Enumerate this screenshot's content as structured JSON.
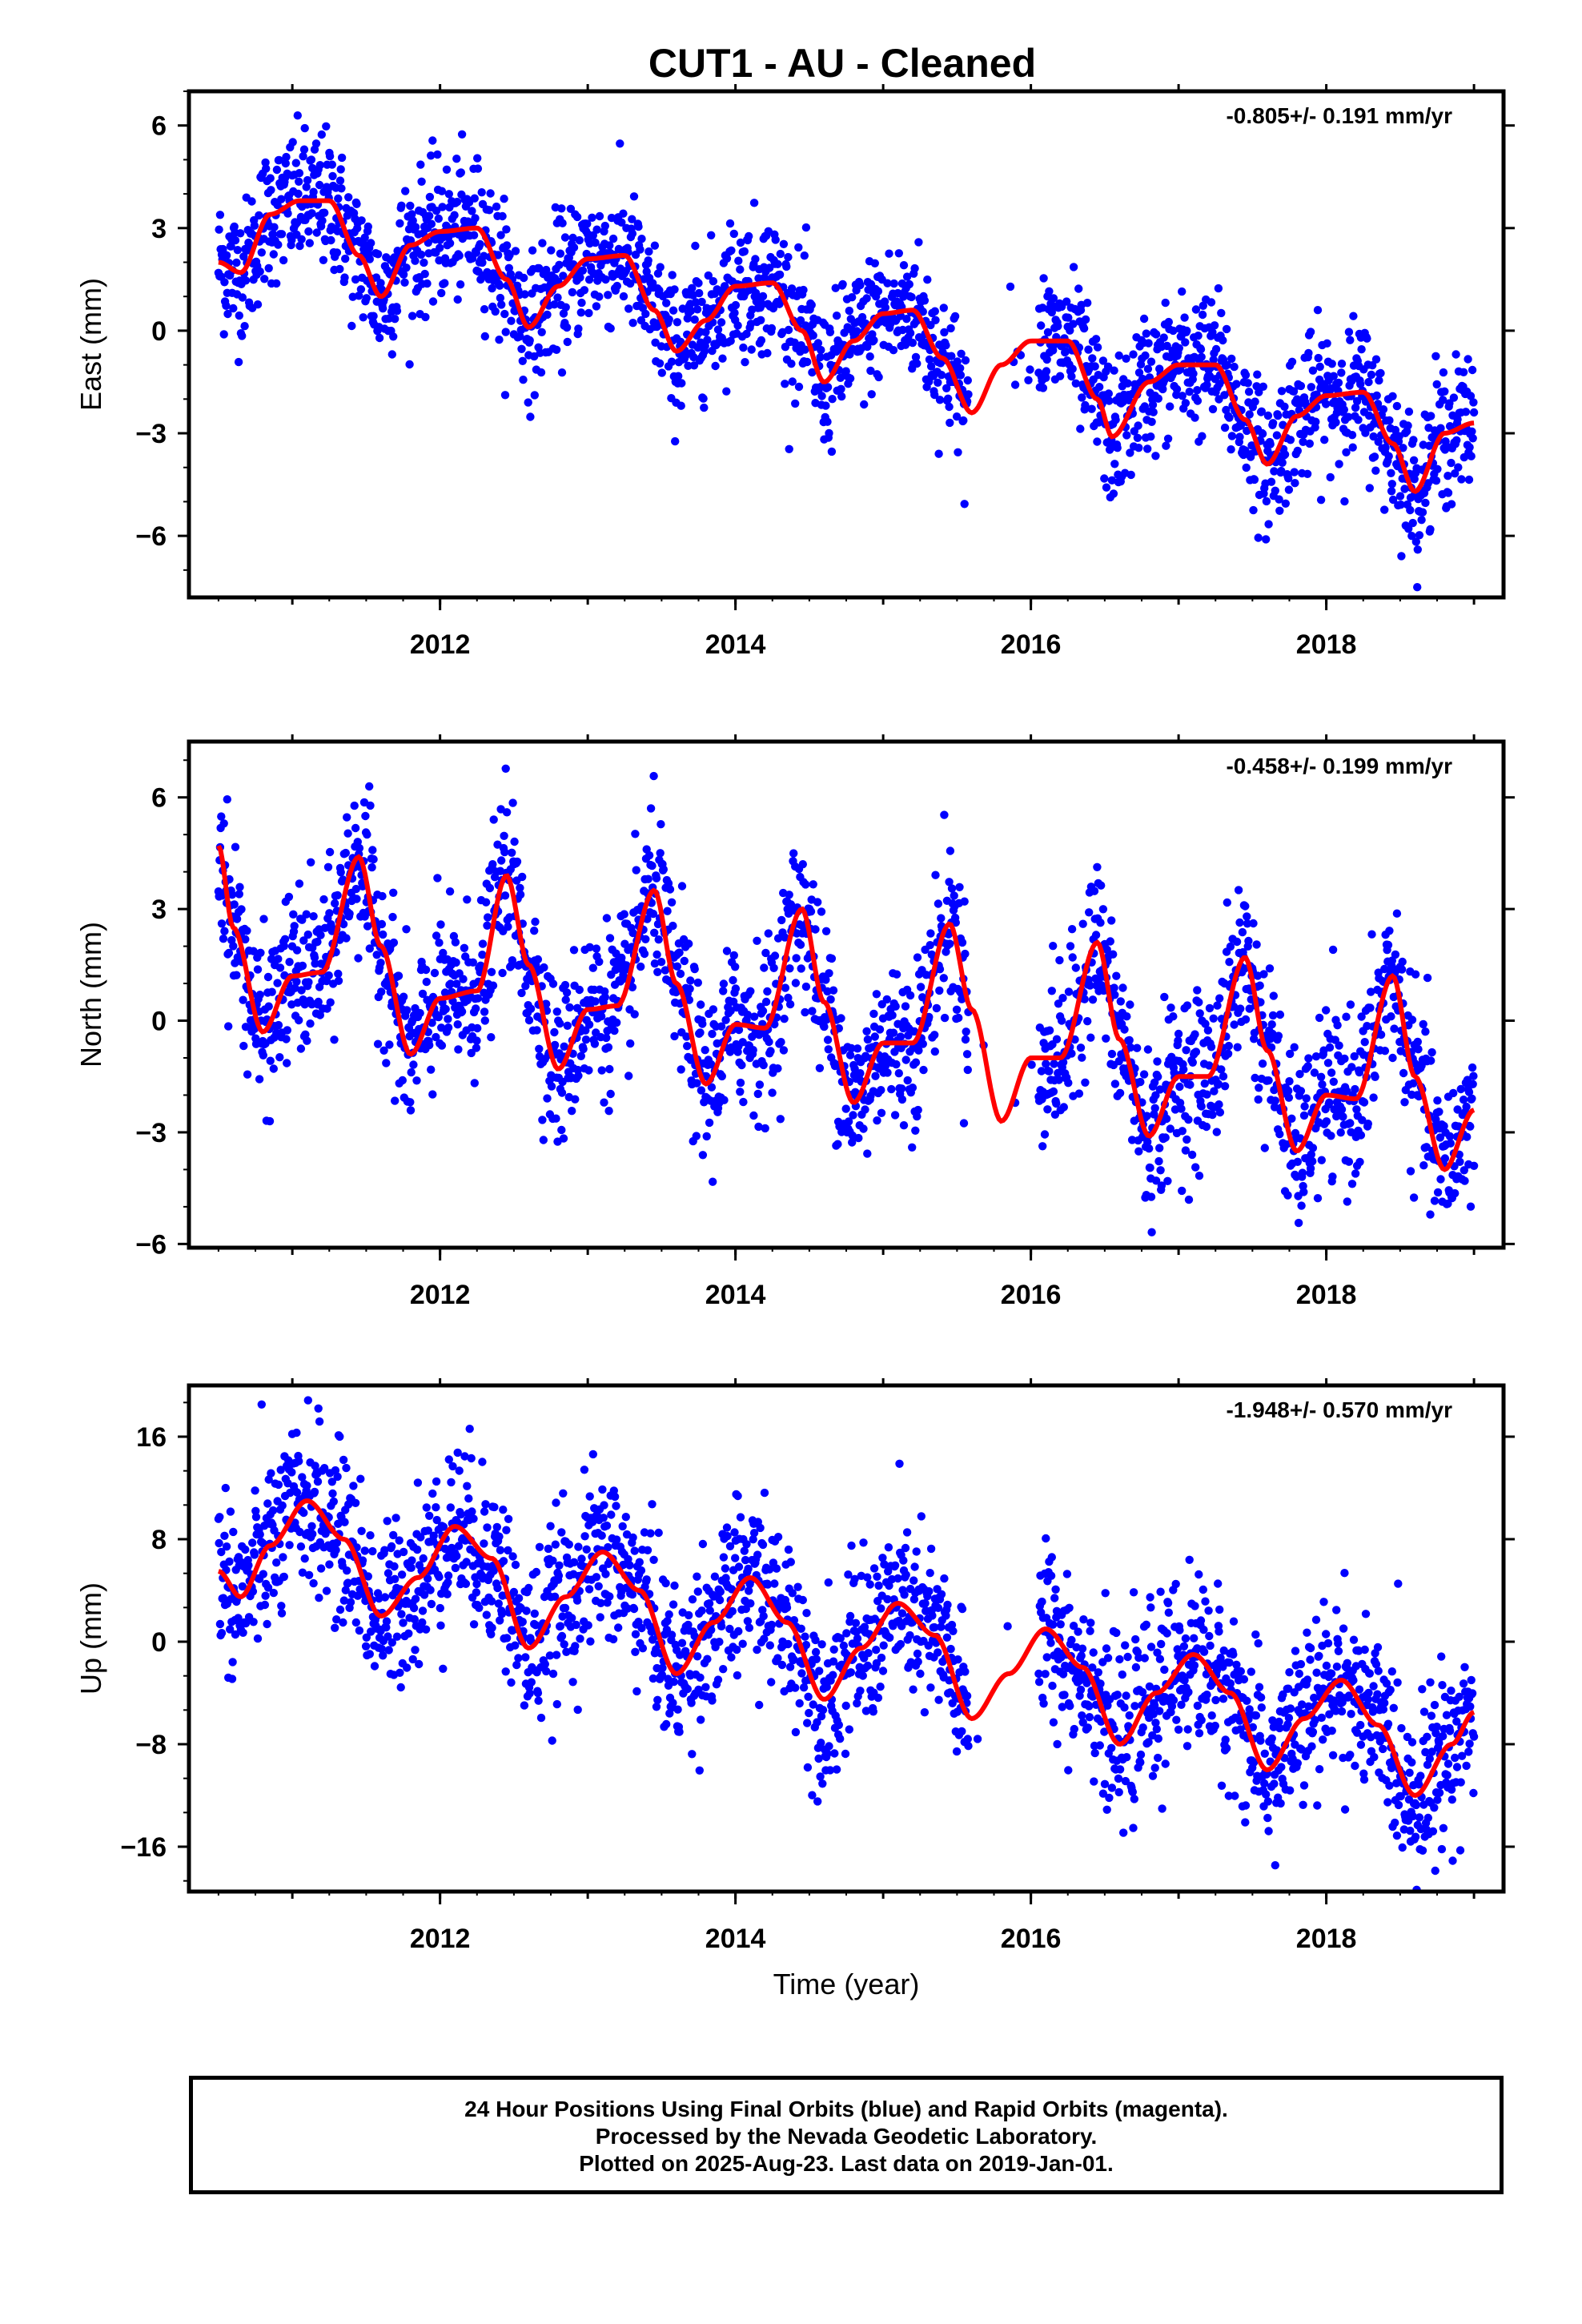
{
  "title": "CUT1  - AU - Cleaned",
  "xlabel": "Time (year)",
  "footer": {
    "line1": "24 Hour Positions Using Final Orbits (blue) and Rapid Orbits (magenta).",
    "line2": "Processed by the Nevada Geodetic Laboratory.",
    "line3": "Plotted on 2025-Aug-23. Last data on 2019-Jan-01."
  },
  "colors": {
    "points": "#0000ff",
    "model": "#ff0000",
    "frame": "#000000"
  },
  "chart_data": [
    {
      "type": "scatter",
      "component": "east",
      "ylabel": "East (mm)",
      "rate_text": "-0.805+/- 0.191 mm/yr",
      "xlim": [
        2010.3,
        2019.2
      ],
      "ylim": [
        -7.8,
        7.0
      ],
      "yticks": [
        6,
        3,
        0,
        -3,
        -6
      ],
      "xticks": [
        2012,
        2014,
        2016,
        2018
      ],
      "x_start": 2010.5,
      "x_end": 2019.0,
      "gap": [
        2015.58,
        2016.05
      ],
      "model_points": [
        [
          2010.5,
          2.0
        ],
        [
          2010.65,
          1.7
        ],
        [
          2010.85,
          3.4
        ],
        [
          2011.05,
          3.8
        ],
        [
          2011.25,
          3.8
        ],
        [
          2011.45,
          2.2
        ],
        [
          2011.6,
          1.0
        ],
        [
          2011.8,
          2.5
        ],
        [
          2012.0,
          2.9
        ],
        [
          2012.25,
          3.0
        ],
        [
          2012.45,
          1.5
        ],
        [
          2012.6,
          0.1
        ],
        [
          2012.8,
          1.3
        ],
        [
          2013.0,
          2.1
        ],
        [
          2013.25,
          2.2
        ],
        [
          2013.45,
          0.6
        ],
        [
          2013.6,
          -0.6
        ],
        [
          2013.8,
          0.3
        ],
        [
          2014.0,
          1.3
        ],
        [
          2014.25,
          1.4
        ],
        [
          2014.45,
          0.0
        ],
        [
          2014.6,
          -1.5
        ],
        [
          2014.8,
          -0.3
        ],
        [
          2015.0,
          0.5
        ],
        [
          2015.2,
          0.6
        ],
        [
          2015.4,
          -0.8
        ],
        [
          2015.6,
          -2.4
        ],
        [
          2015.8,
          -1.0
        ],
        [
          2016.0,
          -0.3
        ],
        [
          2016.25,
          -0.3
        ],
        [
          2016.45,
          -2.0
        ],
        [
          2016.55,
          -3.1
        ],
        [
          2016.8,
          -1.5
        ],
        [
          2017.0,
          -1.0
        ],
        [
          2017.25,
          -1.0
        ],
        [
          2017.45,
          -2.6
        ],
        [
          2017.6,
          -3.9
        ],
        [
          2017.8,
          -2.5
        ],
        [
          2018.0,
          -1.9
        ],
        [
          2018.25,
          -1.8
        ],
        [
          2018.45,
          -3.3
        ],
        [
          2018.6,
          -4.7
        ],
        [
          2018.8,
          -3.0
        ],
        [
          2019.0,
          -2.7
        ]
      ],
      "noise": 1.0,
      "point_count": 2300
    },
    {
      "type": "scatter",
      "component": "north",
      "ylabel": "North (mm)",
      "rate_text": "-0.458+/- 0.199 mm/yr",
      "xlim": [
        2010.3,
        2019.2
      ],
      "ylim": [
        -6.1,
        7.5
      ],
      "yticks": [
        6,
        3,
        0,
        -3,
        -6
      ],
      "xticks": [
        2012,
        2014,
        2016,
        2018
      ],
      "x_start": 2010.5,
      "x_end": 2019.0,
      "gap": [
        2015.58,
        2016.05
      ],
      "model_points": [
        [
          2010.5,
          4.7
        ],
        [
          2010.6,
          2.5
        ],
        [
          2010.8,
          -0.3
        ],
        [
          2011.0,
          1.2
        ],
        [
          2011.2,
          1.3
        ],
        [
          2011.45,
          4.4
        ],
        [
          2011.6,
          2.0
        ],
        [
          2011.8,
          -0.9
        ],
        [
          2012.0,
          0.6
        ],
        [
          2012.25,
          0.8
        ],
        [
          2012.45,
          3.9
        ],
        [
          2012.6,
          1.5
        ],
        [
          2012.8,
          -1.3
        ],
        [
          2013.0,
          0.3
        ],
        [
          2013.2,
          0.4
        ],
        [
          2013.45,
          3.5
        ],
        [
          2013.6,
          1.0
        ],
        [
          2013.8,
          -1.7
        ],
        [
          2014.0,
          -0.1
        ],
        [
          2014.2,
          -0.2
        ],
        [
          2014.45,
          3.0
        ],
        [
          2014.6,
          0.5
        ],
        [
          2014.8,
          -2.2
        ],
        [
          2015.0,
          -0.6
        ],
        [
          2015.2,
          -0.6
        ],
        [
          2015.45,
          2.6
        ],
        [
          2015.6,
          0.3
        ],
        [
          2015.8,
          -2.7
        ],
        [
          2016.0,
          -1.0
        ],
        [
          2016.2,
          -1.0
        ],
        [
          2016.45,
          2.1
        ],
        [
          2016.6,
          -0.5
        ],
        [
          2016.8,
          -3.1
        ],
        [
          2017.0,
          -1.5
        ],
        [
          2017.2,
          -1.5
        ],
        [
          2017.45,
          1.7
        ],
        [
          2017.6,
          -0.8
        ],
        [
          2017.8,
          -3.5
        ],
        [
          2018.0,
          -2.0
        ],
        [
          2018.2,
          -2.1
        ],
        [
          2018.45,
          1.2
        ],
        [
          2018.6,
          -1.5
        ],
        [
          2018.8,
          -4.0
        ],
        [
          2019.0,
          -2.4
        ]
      ],
      "noise": 1.1,
      "point_count": 2300
    },
    {
      "type": "scatter",
      "component": "up",
      "ylabel": "Up (mm)",
      "rate_text": "-1.948+/- 0.570 mm/yr",
      "xlim": [
        2010.3,
        2019.2
      ],
      "ylim": [
        -19.5,
        20.0
      ],
      "yticks": [
        16,
        8,
        0,
        -8,
        -16
      ],
      "xticks": [
        2012,
        2014,
        2016,
        2018
      ],
      "x_start": 2010.5,
      "x_end": 2019.0,
      "gap": [
        2015.58,
        2016.05
      ],
      "model_points": [
        [
          2010.5,
          5.5
        ],
        [
          2010.65,
          3.5
        ],
        [
          2010.85,
          7.5
        ],
        [
          2011.1,
          11.0
        ],
        [
          2011.35,
          8.0
        ],
        [
          2011.6,
          2.0
        ],
        [
          2011.85,
          5.0
        ],
        [
          2012.1,
          9.0
        ],
        [
          2012.35,
          6.5
        ],
        [
          2012.6,
          -0.5
        ],
        [
          2012.85,
          3.5
        ],
        [
          2013.1,
          7.0
        ],
        [
          2013.35,
          4.0
        ],
        [
          2013.6,
          -2.5
        ],
        [
          2013.85,
          1.5
        ],
        [
          2014.1,
          5.0
        ],
        [
          2014.35,
          1.5
        ],
        [
          2014.6,
          -4.5
        ],
        [
          2014.85,
          -0.5
        ],
        [
          2015.1,
          3.0
        ],
        [
          2015.35,
          0.5
        ],
        [
          2015.6,
          -6.0
        ],
        [
          2015.85,
          -2.5
        ],
        [
          2016.1,
          1.0
        ],
        [
          2016.35,
          -2.0
        ],
        [
          2016.6,
          -8.0
        ],
        [
          2016.85,
          -4.0
        ],
        [
          2017.1,
          -1.0
        ],
        [
          2017.35,
          -4.0
        ],
        [
          2017.6,
          -10.0
        ],
        [
          2017.85,
          -6.0
        ],
        [
          2018.1,
          -3.0
        ],
        [
          2018.35,
          -6.5
        ],
        [
          2018.6,
          -12.0
        ],
        [
          2018.85,
          -8.0
        ],
        [
          2019.0,
          -5.5
        ]
      ],
      "noise": 3.3,
      "point_count": 2300
    }
  ]
}
